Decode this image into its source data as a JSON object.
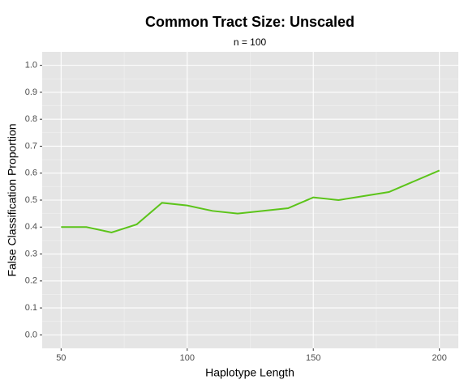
{
  "chart_data": {
    "type": "line",
    "title": "Common Tract Size: Unscaled",
    "subtitle": "n = 100",
    "x_label": "Haplotype Length",
    "y_label": "False Classification Proportion",
    "x": [
      50,
      60,
      70,
      80,
      90,
      100,
      110,
      120,
      140,
      150,
      160,
      180,
      200
    ],
    "series": [
      {
        "name": "False Classification Proportion",
        "color": "#5cc41a",
        "values": [
          0.4,
          0.4,
          0.38,
          0.41,
          0.49,
          0.48,
          0.46,
          0.45,
          0.47,
          0.51,
          0.5,
          0.53,
          0.61
        ]
      }
    ],
    "xlim": [
      42.5,
      207.5
    ],
    "ylim": [
      -0.05,
      1.05
    ],
    "xticks": [
      50,
      100,
      150,
      200
    ],
    "yticks": [
      {
        "value": 0,
        "label": "0.0"
      },
      0.1,
      0.2,
      0.3,
      0.4,
      0.5,
      0.6,
      0.7,
      0.8,
      0.9,
      {
        "value": 1,
        "label": "1.0"
      }
    ],
    "xminor": [
      75,
      125,
      175
    ],
    "yminor": [
      0.05,
      0.15,
      0.25,
      0.35,
      0.45,
      0.55,
      0.65,
      0.75,
      0.85,
      0.95
    ],
    "grid": true
  }
}
